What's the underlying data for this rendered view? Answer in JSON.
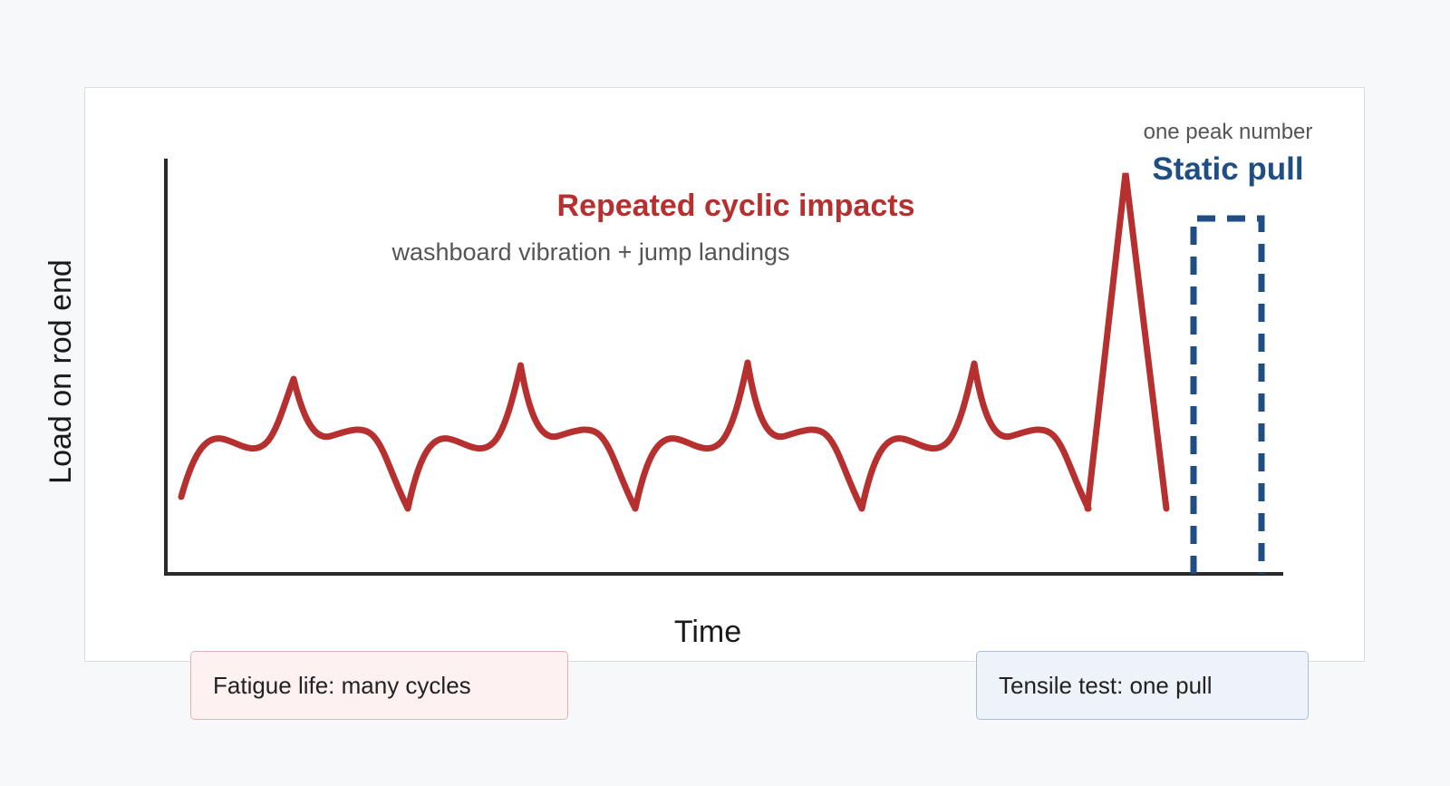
{
  "diagram": {
    "y_axis_label": "Load on rod end",
    "x_axis_label": "Time",
    "cyclic": {
      "title": "Repeated cyclic impacts",
      "subtitle": "washboard vibration + jump landings",
      "color": "#b5302f"
    },
    "static": {
      "caption": "one peak number",
      "title": "Static pull",
      "color": "#1f4e85"
    }
  },
  "legend": {
    "fatigue_label": "Fatigue life: many cycles",
    "tensile_label": "Tensile test: one pull"
  }
}
